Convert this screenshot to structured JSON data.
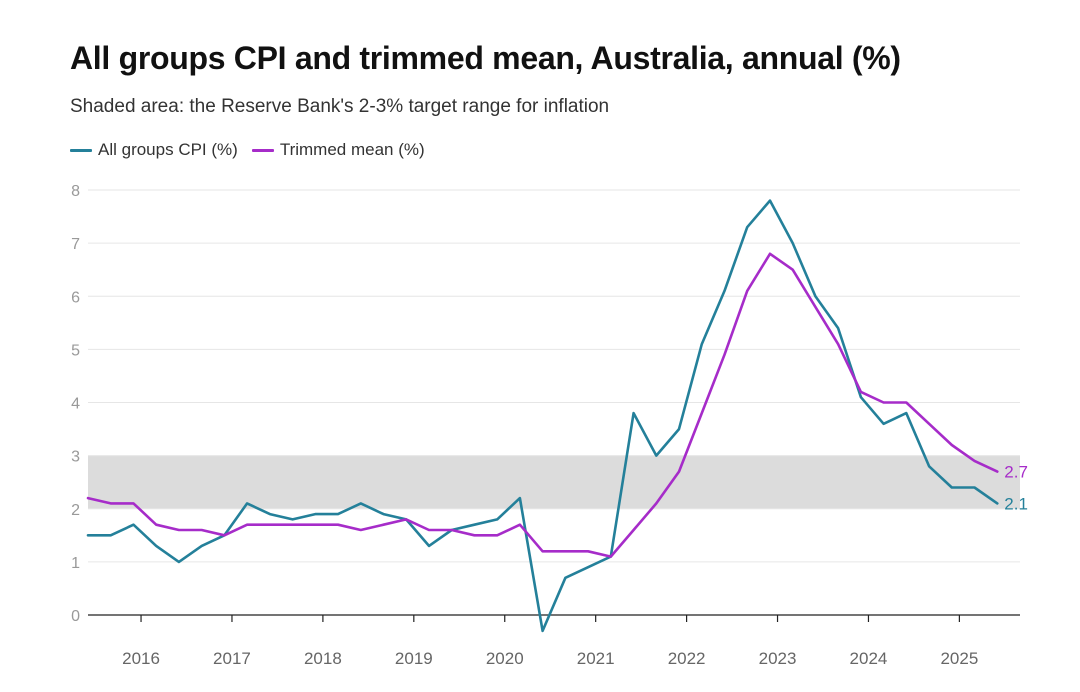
{
  "title": "All groups CPI and trimmed mean, Australia, annual (%)",
  "subtitle": "Shaded area: the Reserve Bank's 2-3% target range for inflation",
  "colors": {
    "cpi": "#24809a",
    "trimmed": "#a62cc9",
    "band": "#dcdcdc",
    "grid": "#e6e6e6",
    "axis": "#999999"
  },
  "chart_data": {
    "type": "line",
    "title": "All groups CPI and trimmed mean, Australia, annual (%)",
    "subtitle": "Shaded area: the Reserve Bank's 2-3% target range for inflation",
    "xlabel": "",
    "ylabel": "",
    "ylim": [
      0,
      8
    ],
    "yticks": [
      "0",
      "1",
      "2",
      "3",
      "4",
      "5",
      "6",
      "7",
      "8"
    ],
    "xticks": [
      "2016",
      "2017",
      "2018",
      "2019",
      "2020",
      "2021",
      "2022",
      "2023",
      "2024",
      "2025"
    ],
    "xlim": [
      "2015-06",
      "2025-09"
    ],
    "target_band": [
      2,
      3
    ],
    "grid": true,
    "legend_position": "top-left",
    "x": [
      "2015-06",
      "2015-09",
      "2015-12",
      "2016-03",
      "2016-06",
      "2016-09",
      "2016-12",
      "2017-03",
      "2017-06",
      "2017-09",
      "2017-12",
      "2018-03",
      "2018-06",
      "2018-09",
      "2018-12",
      "2019-03",
      "2019-06",
      "2019-09",
      "2019-12",
      "2020-03",
      "2020-06",
      "2020-09",
      "2020-12",
      "2021-03",
      "2021-06",
      "2021-09",
      "2021-12",
      "2022-03",
      "2022-06",
      "2022-09",
      "2022-12",
      "2023-03",
      "2023-06",
      "2023-09",
      "2023-12",
      "2024-03",
      "2024-06",
      "2024-09",
      "2024-12",
      "2025-03",
      "2025-06"
    ],
    "series": [
      {
        "name": "All groups CPI (%)",
        "color": "#24809a",
        "end_label": "2.1",
        "values": [
          1.5,
          1.5,
          1.7,
          1.3,
          1.0,
          1.3,
          1.5,
          2.1,
          1.9,
          1.8,
          1.9,
          1.9,
          2.1,
          1.9,
          1.8,
          1.3,
          1.6,
          1.7,
          1.8,
          2.2,
          -0.3,
          0.7,
          0.9,
          1.1,
          3.8,
          3.0,
          3.5,
          5.1,
          6.1,
          7.3,
          7.8,
          7.0,
          6.0,
          5.4,
          4.1,
          3.6,
          3.8,
          2.8,
          2.4,
          2.4,
          2.1
        ]
      },
      {
        "name": "Trimmed mean (%)",
        "color": "#a62cc9",
        "end_label": "2.7",
        "values": [
          2.2,
          2.1,
          2.1,
          1.7,
          1.6,
          1.6,
          1.5,
          1.7,
          1.7,
          1.7,
          1.7,
          1.7,
          1.6,
          1.7,
          1.8,
          1.6,
          1.6,
          1.5,
          1.5,
          1.7,
          1.2,
          1.2,
          1.2,
          1.1,
          1.6,
          2.1,
          2.7,
          3.8,
          4.9,
          6.1,
          6.8,
          6.5,
          5.8,
          5.1,
          4.2,
          4.0,
          4.0,
          3.6,
          3.2,
          2.9,
          2.7
        ]
      }
    ]
  }
}
